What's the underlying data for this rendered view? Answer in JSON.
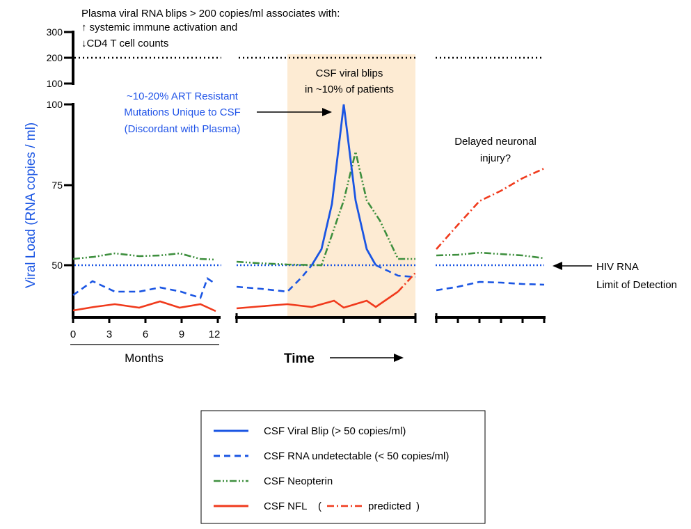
{
  "header": {
    "line1": "Plasma viral RNA blips > 200 copies/ml associates with:",
    "line2": "↑ systemic immune activation and",
    "line3": "↓CD4 T cell counts"
  },
  "y_axis": {
    "label": "Viral Load (RNA copies / ml)",
    "upper_ticks": [
      "300",
      "200",
      "100"
    ],
    "lower_ticks": [
      "100",
      "75",
      "50"
    ]
  },
  "x_axis": {
    "months_ticks": [
      "0",
      "3",
      "6",
      "9",
      "12"
    ],
    "months_label": "Months",
    "time_label": "Time"
  },
  "annotations": {
    "resistant_line1": "~10-20% ART Resistant",
    "resistant_line2": "Mutations Unique to CSF",
    "resistant_line3": "(Discordant with Plasma)",
    "blip_line1": "CSF viral blips",
    "blip_line2": "in ~10% of patients",
    "delayed_line1": "Delayed neuronal",
    "delayed_line2": "injury?",
    "lod_line1": "HIV RNA",
    "lod_line2": "Limit of Detection"
  },
  "legend": {
    "blip": "CSF Viral Blip (> 50 copies/ml)",
    "undetectable": "CSF RNA undetectable (< 50 copies/ml)",
    "neopterin": "CSF Neopterin",
    "nfl": "CSF NFL",
    "paren_open": "(",
    "predicted": "predicted",
    "paren_close": ")"
  },
  "colors": {
    "blue": "#1a55e3",
    "green": "#3e8f3e",
    "red": "#f03a1c",
    "shade": "#fdebd3",
    "annotation_blue": "#2255e8"
  }
}
